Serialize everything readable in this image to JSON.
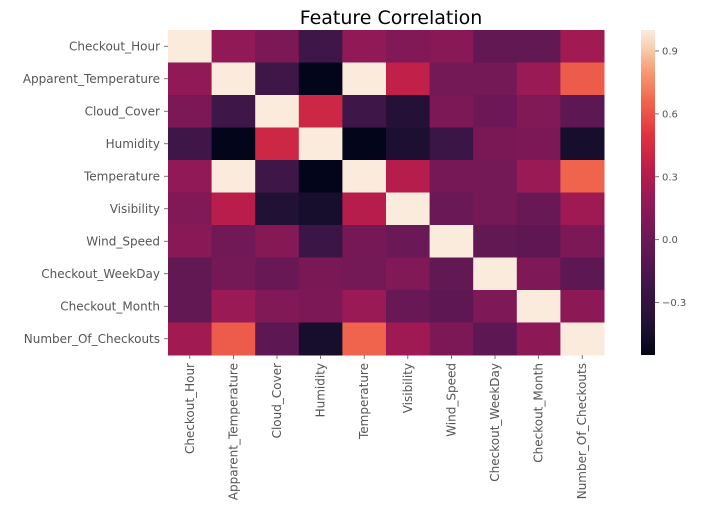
{
  "chart_data": {
    "type": "heatmap",
    "title": "Feature Correlation",
    "xlabel": "",
    "ylabel": "",
    "labels": [
      "Checkout_Hour",
      "Apparent_Temperature",
      "Cloud_Cover",
      "Humidity",
      "Temperature",
      "Visibility",
      "Wind_Speed",
      "Checkout_WeekDay",
      "Checkout_Month",
      "Number_Of_Checkouts"
    ],
    "matrix": [
      [
        1.0,
        0.17,
        0.08,
        -0.22,
        0.17,
        0.1,
        0.13,
        -0.05,
        -0.05,
        0.24
      ],
      [
        0.17,
        1.0,
        -0.22,
        -0.55,
        1.0,
        0.36,
        0.04,
        0.04,
        0.21,
        0.63
      ],
      [
        0.08,
        -0.22,
        1.0,
        0.41,
        -0.22,
        -0.38,
        0.08,
        0.01,
        0.1,
        -0.07
      ],
      [
        -0.22,
        -0.55,
        0.41,
        1.0,
        -0.55,
        -0.42,
        -0.25,
        0.07,
        0.08,
        -0.45
      ],
      [
        0.17,
        1.0,
        -0.22,
        -0.55,
        1.0,
        0.32,
        0.05,
        0.04,
        0.21,
        0.66
      ],
      [
        0.1,
        0.33,
        -0.4,
        -0.45,
        0.32,
        1.0,
        0.0,
        0.04,
        -0.02,
        0.23
      ],
      [
        0.13,
        0.03,
        0.12,
        -0.25,
        0.05,
        0.0,
        1.0,
        -0.05,
        -0.06,
        0.08
      ],
      [
        -0.05,
        0.04,
        -0.01,
        0.07,
        0.04,
        0.1,
        -0.05,
        1.0,
        0.09,
        -0.07
      ],
      [
        -0.05,
        0.21,
        0.1,
        0.08,
        0.21,
        -0.02,
        -0.06,
        0.09,
        1.0,
        0.15
      ],
      [
        0.24,
        0.63,
        -0.07,
        -0.45,
        0.66,
        0.23,
        0.08,
        -0.07,
        0.15,
        1.0
      ]
    ],
    "colorbar": {
      "min": -0.55,
      "max": 1.0,
      "ticks": [
        0.9,
        0.6,
        0.3,
        0.0,
        -0.3
      ],
      "tick_labels": [
        "0.9",
        "0.6",
        "0.3",
        "0.0",
        "−0.3"
      ]
    }
  }
}
